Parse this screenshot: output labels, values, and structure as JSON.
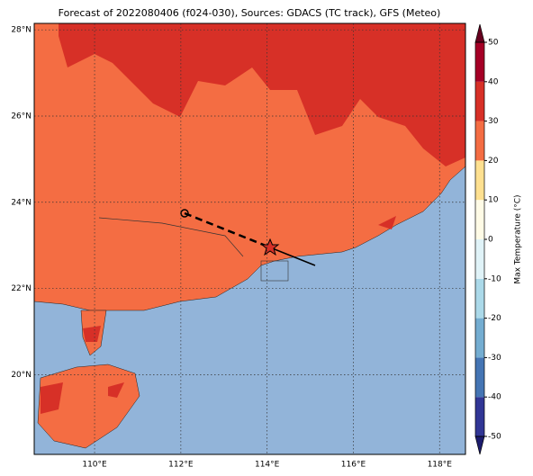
{
  "title": "Forecast of 2022080406 (f024-030), Sources: GDACS (TC track), GFS (Meteo)",
  "map": {
    "lon_range": [
      108.6,
      118.6
    ],
    "lat_range": [
      18.15,
      28.15
    ],
    "lon_ticks": [
      {
        "value": 110,
        "label": "110°E"
      },
      {
        "value": 112,
        "label": "112°E"
      },
      {
        "value": 114,
        "label": "114°E"
      },
      {
        "value": 116,
        "label": "116°E"
      },
      {
        "value": 118,
        "label": "118°E"
      }
    ],
    "lat_ticks": [
      {
        "value": 20,
        "label": "20°N"
      },
      {
        "value": 22,
        "label": "22°N"
      },
      {
        "value": 24,
        "label": "24°N"
      },
      {
        "value": 26,
        "label": "26°N"
      },
      {
        "value": 28,
        "label": "28°N"
      }
    ]
  },
  "colorbar": {
    "label": "Max Temperature (°C)",
    "lim": [
      -50,
      50
    ],
    "ticks": [
      -50,
      -40,
      -30,
      -20,
      -10,
      0,
      10,
      20,
      30,
      40,
      50
    ],
    "colors": [
      "#313695",
      "#4575b4",
      "#74add1",
      "#abd9e9",
      "#e0f3f8",
      "#fffbe6",
      "#fee090",
      "#f46d43",
      "#d73027",
      "#a50026"
    ]
  }
}
